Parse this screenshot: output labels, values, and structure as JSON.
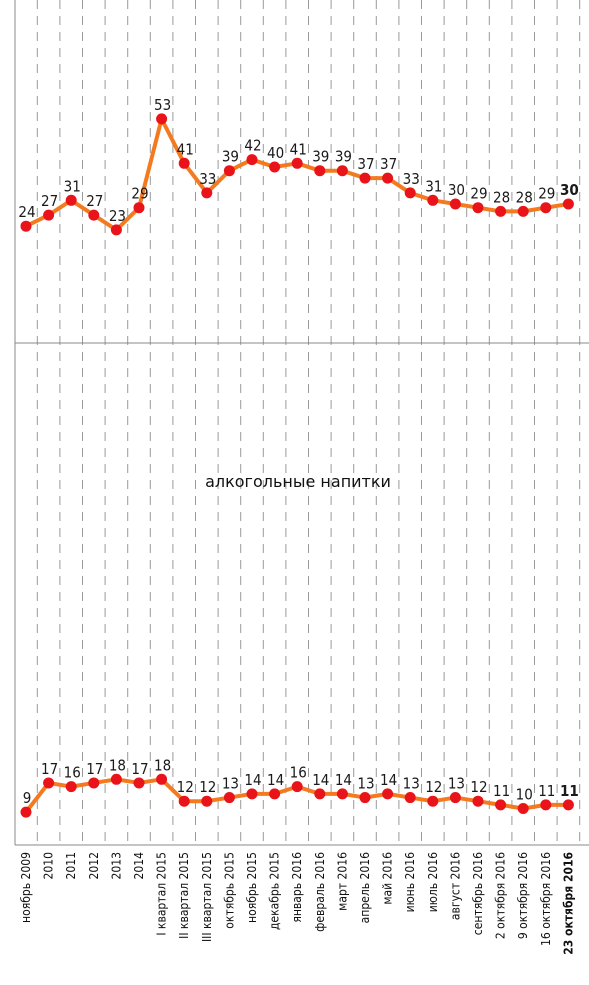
{
  "chart_data": {
    "type": "line",
    "categories": [
      "ноябрь 2009",
      "2010",
      "2011",
      "2012",
      "2013",
      "2014",
      "I квартал 2015",
      "II квартал 2015",
      "III квартал 2015",
      "октябрь 2015",
      "ноябрь 2015",
      "декабрь 2015",
      "январь 2016",
      "февраль 2016",
      "март 2016",
      "апрель 2016",
      "май 2016",
      "июнь 2016",
      "июль 2016",
      "август 2016",
      "сентябрь 2016",
      "2 октября 2016",
      "9 октября 2016",
      "16 октября 2016",
      "23 октября 2016"
    ],
    "highlight_last_category": true,
    "line_color": "#f47a20",
    "marker_color": "#e8141a",
    "grid": "vertical dashed",
    "panels": [
      {
        "title": "",
        "values": [
          24,
          27,
          31,
          27,
          23,
          29,
          53,
          41,
          33,
          39,
          42,
          40,
          41,
          39,
          39,
          37,
          37,
          33,
          31,
          30,
          29,
          28,
          28,
          29,
          30
        ],
        "ylim": [
          0,
          60
        ]
      },
      {
        "title": "алкогольные напитки",
        "values": [
          9,
          17,
          16,
          17,
          18,
          17,
          18,
          12,
          12,
          13,
          14,
          14,
          16,
          14,
          14,
          13,
          14,
          13,
          12,
          13,
          12,
          11,
          10,
          11,
          11
        ],
        "ylim": [
          0,
          60
        ]
      }
    ]
  }
}
